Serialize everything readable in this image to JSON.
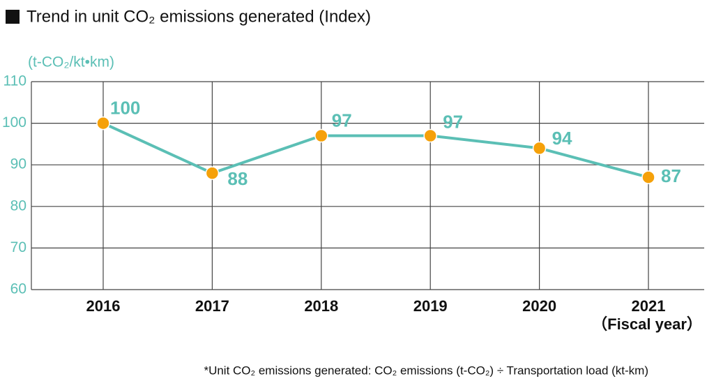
{
  "chart_data": {
    "type": "line",
    "title": "Trend in unit CO₂ emissions generated (Index)",
    "y_label": "(t-CO₂/kt•km)",
    "x_label": "（Fiscal year）",
    "footnote": "*Unit CO₂ emissions generated: CO₂ emissions (t-CO₂) ÷ Transportation load (kt-km)",
    "categories": [
      "2016",
      "2017",
      "2018",
      "2019",
      "2020",
      "2021"
    ],
    "series": [
      {
        "color": "#5bbfb5",
        "marker_color": "#f5a10a",
        "values": [
          100,
          88,
          97,
          97,
          94,
          87
        ]
      }
    ],
    "ylim": [
      60,
      110
    ],
    "yticks": [
      60,
      70,
      80,
      90,
      100,
      110
    ],
    "grid": true
  }
}
